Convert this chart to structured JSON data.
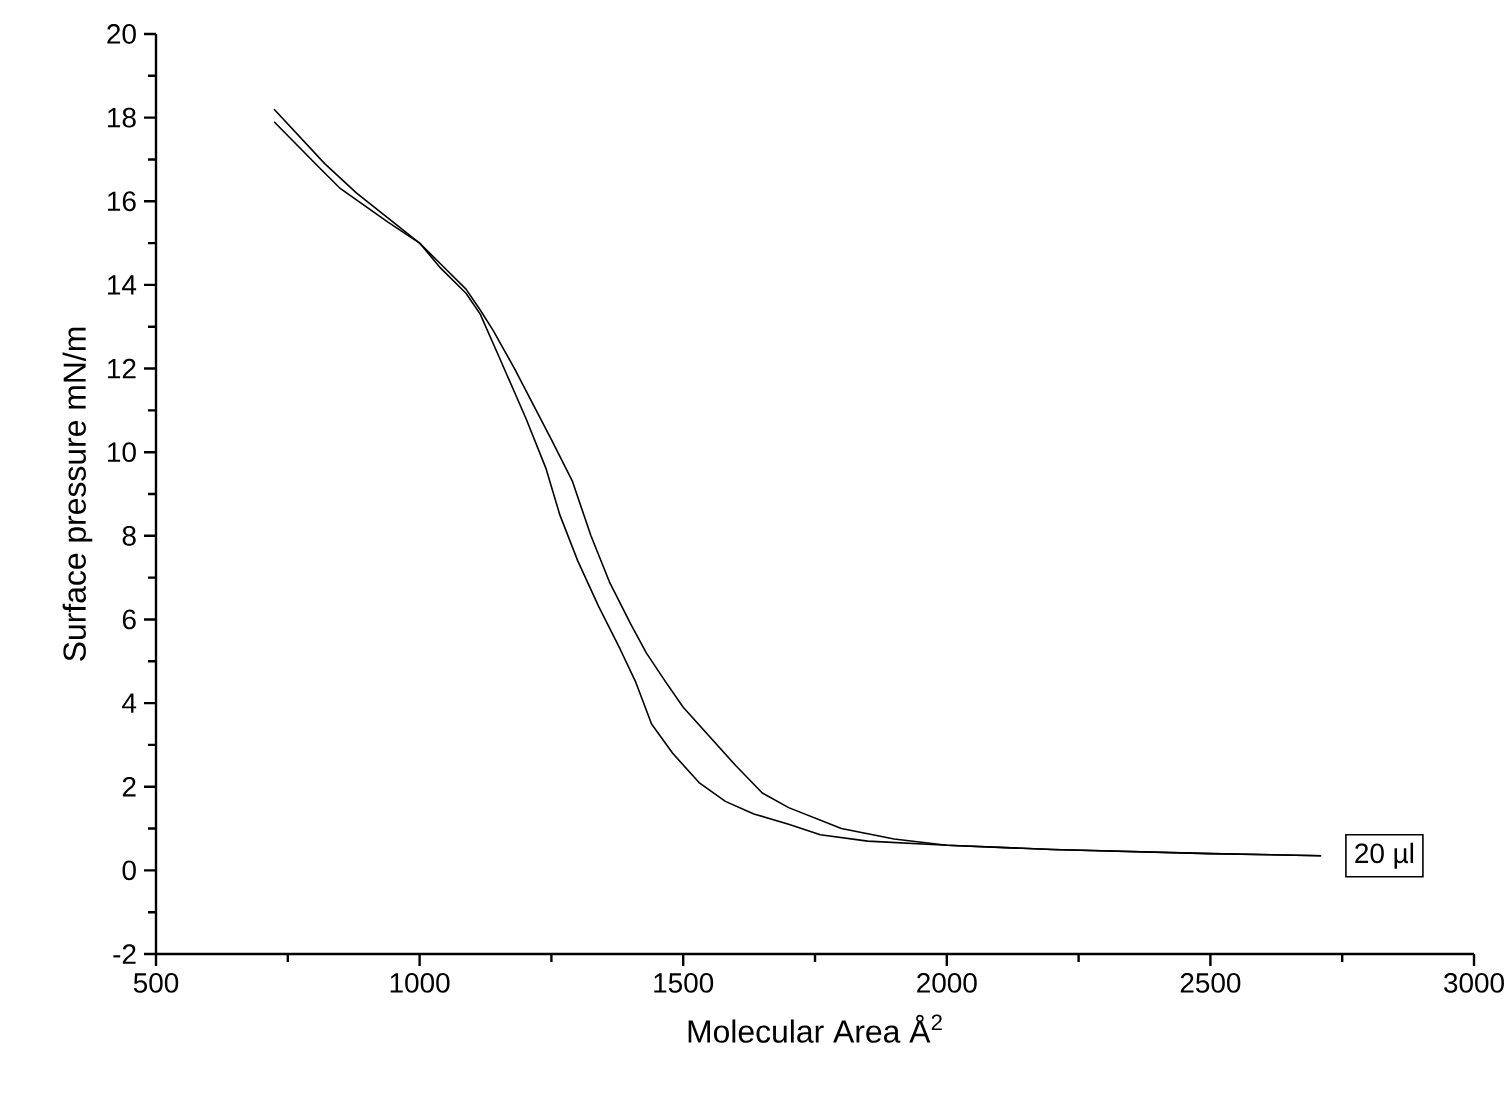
{
  "chart_data": {
    "type": "line",
    "xlabel": "Molecular Area Å$^{2}$",
    "ylabel": "Surface pressure mN/m",
    "xlim": [
      500,
      3000
    ],
    "ylim": [
      -2,
      20
    ],
    "xticks": [
      500,
      1000,
      1500,
      2000,
      2500,
      3000
    ],
    "yticks": [
      -2,
      0,
      2,
      4,
      6,
      8,
      10,
      12,
      14,
      16,
      18,
      20
    ],
    "grid": false,
    "marker": "none",
    "line_style": "solid",
    "series": [
      {
        "color": "#000000",
        "x": [
          724,
          820,
          880,
          940,
          1000,
          1040,
          1088,
          1115,
          1140,
          1180,
          1217,
          1250,
          1290,
          1325,
          1360,
          1400,
          1430,
          1467,
          1500,
          1550,
          1600,
          1650,
          1700,
          1800,
          1900,
          2000,
          2200,
          2500,
          2710
        ],
        "values": [
          18.2,
          16.9,
          16.2,
          15.6,
          15.0,
          14.5,
          13.9,
          13.4,
          12.9,
          12.0,
          11.1,
          10.3,
          9.3,
          8.0,
          6.9,
          5.9,
          5.2,
          4.5,
          3.9,
          3.2,
          2.5,
          1.85,
          1.5,
          1.0,
          0.75,
          0.6,
          0.5,
          0.4,
          0.35
        ]
      },
      {
        "name": "20 µl",
        "color": "#000000",
        "x": [
          724,
          810,
          850,
          940,
          1000,
          1040,
          1088,
          1115,
          1150,
          1202,
          1240,
          1266,
          1300,
          1340,
          1380,
          1410,
          1440,
          1480,
          1530,
          1580,
          1634,
          1700,
          1760,
          1850,
          2000,
          2200,
          2500,
          2710
        ],
        "values": [
          17.9,
          16.8,
          16.3,
          15.5,
          15.0,
          14.4,
          13.8,
          13.3,
          12.3,
          10.8,
          9.6,
          8.5,
          7.4,
          6.3,
          5.3,
          4.5,
          3.5,
          2.8,
          2.1,
          1.65,
          1.35,
          1.1,
          0.85,
          0.7,
          0.6,
          0.5,
          0.4,
          0.35
        ]
      }
    ]
  }
}
